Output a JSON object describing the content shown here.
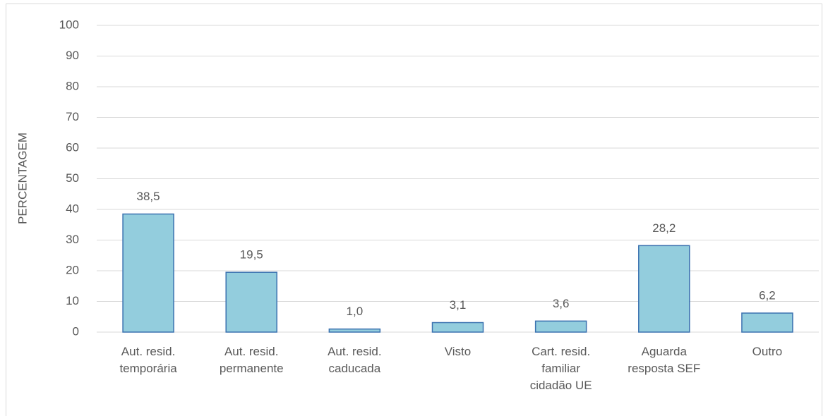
{
  "chart_data": {
    "type": "bar",
    "y_label": "PERCENTAGEM",
    "categories": [
      [
        "Aut. resid.",
        "temporária"
      ],
      [
        "Aut. resid.",
        "permanente"
      ],
      [
        "Aut. resid.",
        "caducada"
      ],
      [
        "Visto"
      ],
      [
        "Cart. resid.",
        "familiar",
        "cidadão UE"
      ],
      [
        "Aguarda",
        "resposta SEF"
      ],
      [
        "Outro"
      ]
    ],
    "values": [
      38.5,
      19.5,
      1.0,
      3.1,
      3.6,
      28.2,
      6.2
    ],
    "value_labels": [
      "38,5",
      "19,5",
      "1,0",
      "3,1",
      "3,6",
      "28,2",
      "6,2"
    ],
    "color": "#93cddd",
    "edge_color": "#3b72b0",
    "ylim": [
      0,
      100
    ],
    "yticks": [
      0,
      10,
      20,
      30,
      40,
      50,
      60,
      70,
      80,
      90,
      100
    ],
    "grid": true
  }
}
